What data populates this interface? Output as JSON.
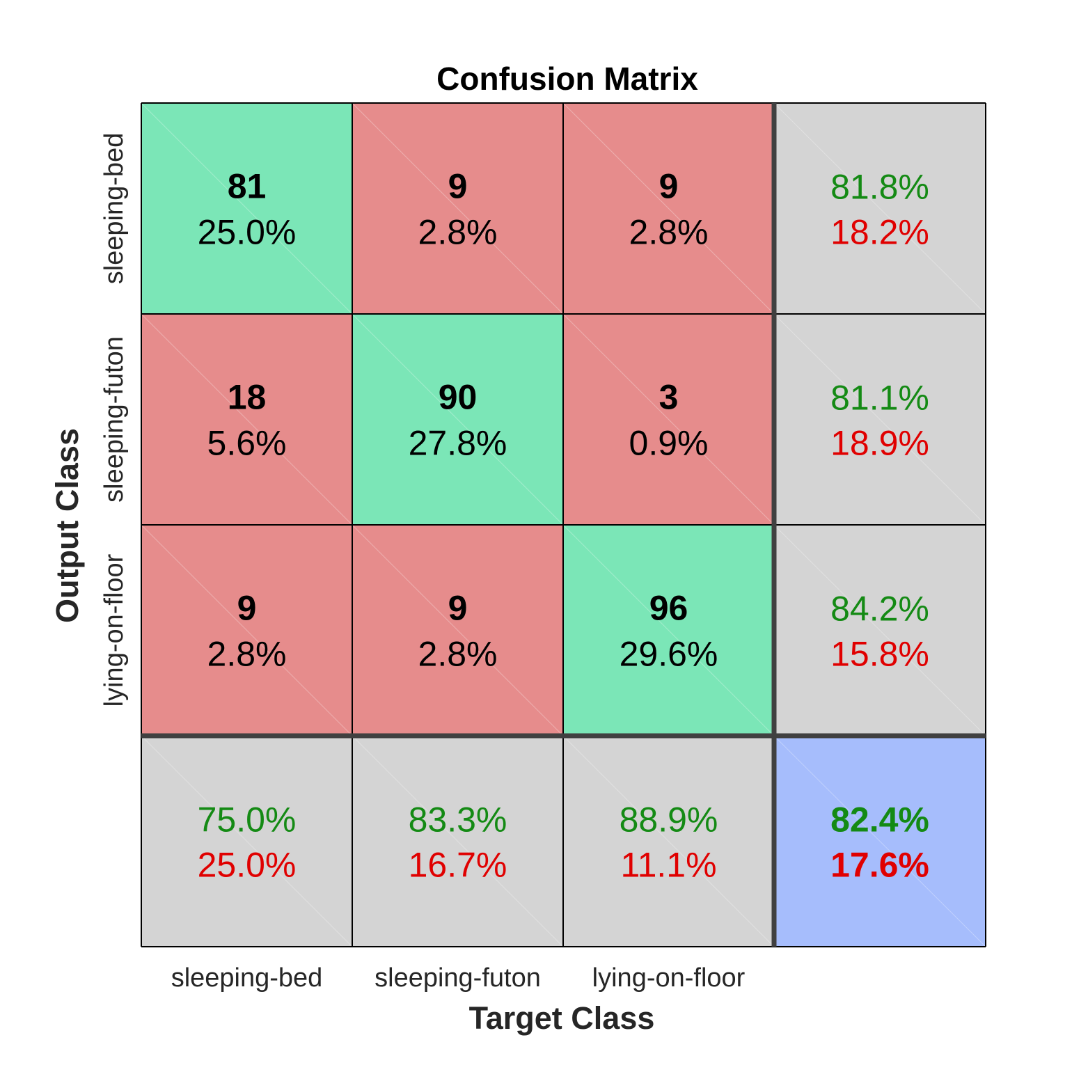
{
  "chart_data": {
    "type": "heatmap",
    "title": "Confusion Matrix",
    "xlabel": "Target Class",
    "ylabel": "Output Class",
    "classes": [
      "sleeping-bed",
      "sleeping-futon",
      "lying-on-floor"
    ],
    "matrix": {
      "counts": [
        [
          81,
          9,
          9
        ],
        [
          18,
          90,
          3
        ],
        [
          9,
          9,
          96
        ]
      ],
      "percents": [
        [
          "25.0%",
          "2.8%",
          "2.8%"
        ],
        [
          "5.6%",
          "27.8%",
          "0.9%"
        ],
        [
          "2.8%",
          "2.8%",
          "29.6%"
        ]
      ]
    },
    "row_summary": [
      {
        "correct": "81.8%",
        "error": "18.2%"
      },
      {
        "correct": "81.1%",
        "error": "18.9%"
      },
      {
        "correct": "84.2%",
        "error": "15.8%"
      }
    ],
    "col_summary": [
      {
        "correct": "75.0%",
        "error": "25.0%"
      },
      {
        "correct": "83.3%",
        "error": "16.7%"
      },
      {
        "correct": "88.9%",
        "error": "11.1%"
      }
    ],
    "overall": {
      "correct": "82.4%",
      "error": "17.6%"
    },
    "colors": {
      "diagonal": "#7be6b7",
      "off_diagonal": "#e68c8c",
      "summary": "#d4d4d4",
      "overall": "#a6bdfc",
      "correct_text": "#148a14",
      "error_text": "#e00000",
      "grid_line": "#000000",
      "separator": "#404040"
    },
    "grid": true,
    "legend": "none"
  }
}
